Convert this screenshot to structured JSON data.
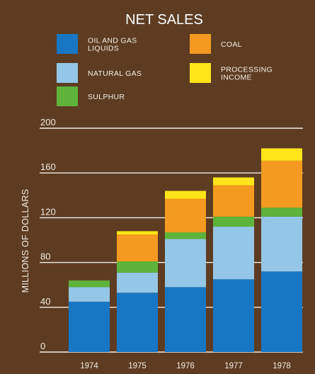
{
  "chart_data": {
    "type": "bar",
    "stacked": true,
    "title": "NET SALES",
    "ylabel": "MILLIONS OF DOLLARS",
    "xlabel": "",
    "categories": [
      "1974",
      "1975",
      "1976",
      "1977",
      "1978"
    ],
    "ylim": [
      0,
      200
    ],
    "yticks": [
      "0",
      "40",
      "80",
      "120",
      "160",
      "200"
    ],
    "grid": true,
    "legend_position": "top",
    "series": [
      {
        "name": "OIL AND GAS LIQUIDS",
        "name_lines": [
          "OIL AND GAS",
          "LIQUIDS"
        ],
        "color": "#1877c5",
        "values": [
          45,
          53,
          58,
          65,
          72
        ]
      },
      {
        "name": "NATURAL GAS",
        "name_lines": [
          "NATURAL GAS"
        ],
        "color": "#94c7e7",
        "values": [
          13,
          18,
          43,
          47,
          49
        ]
      },
      {
        "name": "SULPHUR",
        "name_lines": [
          "SULPHUR"
        ],
        "color": "#5eb43a",
        "values": [
          6,
          10,
          6,
          9,
          8
        ]
      },
      {
        "name": "COAL",
        "name_lines": [
          "COAL"
        ],
        "color": "#f49a20",
        "values": [
          0,
          24,
          30,
          28,
          42
        ]
      },
      {
        "name": "PROCESSING INCOME",
        "name_lines": [
          "PROCESSING",
          "INCOME"
        ],
        "color": "#fde51a",
        "values": [
          0,
          3,
          7,
          7,
          11
        ]
      }
    ]
  }
}
